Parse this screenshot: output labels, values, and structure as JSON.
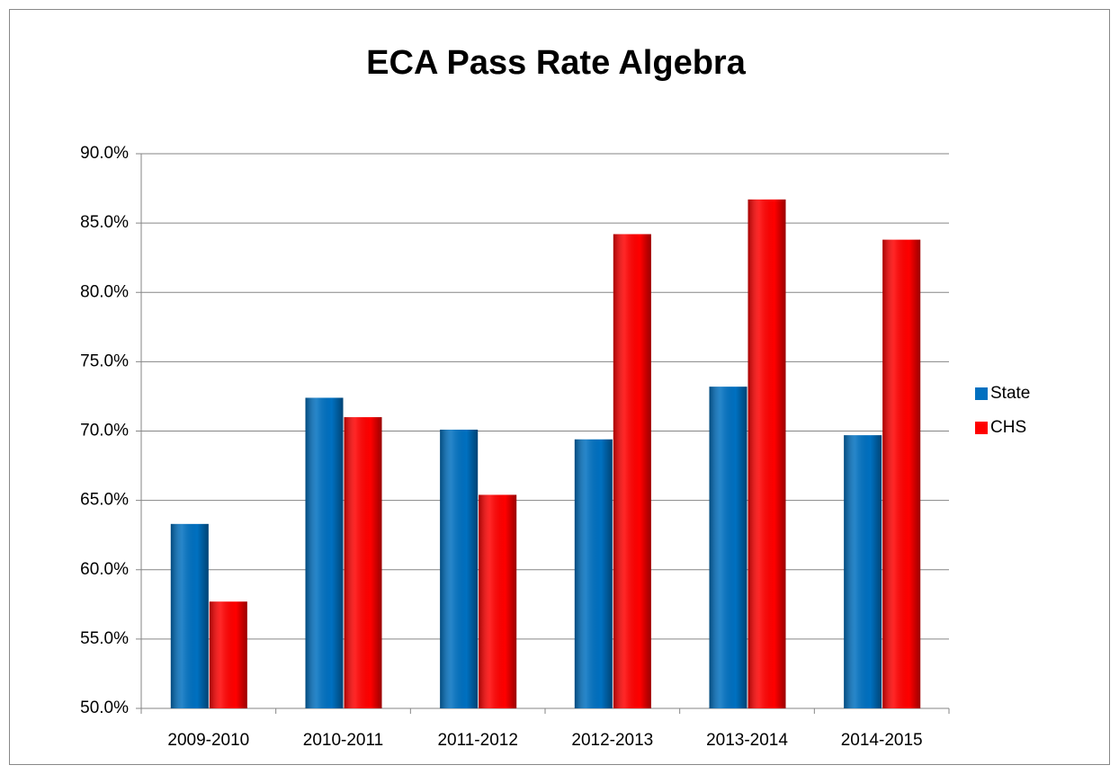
{
  "chart_data": {
    "type": "bar",
    "title": "ECA Pass Rate Algebra",
    "categories": [
      "2009-2010",
      "2010-2011",
      "2011-2012",
      "2012-2013",
      "2013-2014",
      "2014-2015"
    ],
    "series": [
      {
        "name": "State",
        "color": "#0070c0",
        "values": [
          63.3,
          72.4,
          70.1,
          69.4,
          73.2,
          69.7
        ]
      },
      {
        "name": "CHS",
        "color": "#ff0000",
        "values": [
          57.7,
          71.0,
          65.4,
          84.2,
          86.7,
          83.8
        ]
      }
    ],
    "ylim": [
      50,
      90
    ],
    "yticks": [
      {
        "value": 50,
        "label": "50.0%"
      },
      {
        "value": 55,
        "label": "55.0%"
      },
      {
        "value": 60,
        "label": "60.0%"
      },
      {
        "value": 65,
        "label": "65.0%"
      },
      {
        "value": 70,
        "label": "70.0%"
      },
      {
        "value": 75,
        "label": "75.0%"
      },
      {
        "value": 80,
        "label": "80.0%"
      },
      {
        "value": 85,
        "label": "85.0%"
      },
      {
        "value": 90,
        "label": "90.0%"
      }
    ],
    "grid": true,
    "legend": "right"
  }
}
